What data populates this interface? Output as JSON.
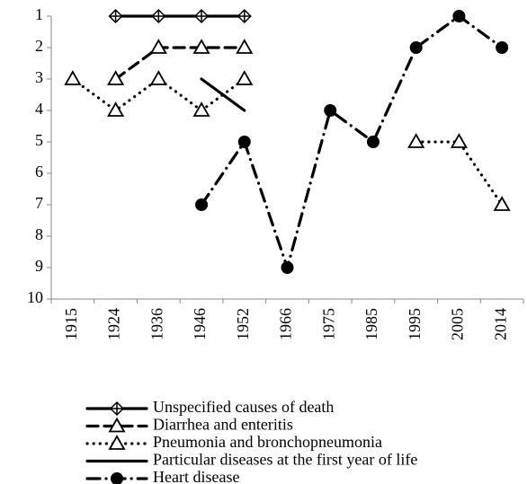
{
  "chart_data": {
    "type": "line",
    "categories": [
      "1915",
      "1924",
      "1936",
      "1946",
      "1952",
      "1966",
      "1975",
      "1985",
      "1995",
      "2005",
      "2014"
    ],
    "ylim": [
      1,
      10
    ],
    "y_inverted": true,
    "yticks": [
      1,
      2,
      3,
      4,
      5,
      6,
      7,
      8,
      9,
      10
    ],
    "grid": false,
    "legend": "bottom",
    "series": [
      {
        "name": "Unspecified causes of death",
        "color": "#000000",
        "marker": "diamond",
        "dash": "solid",
        "values": [
          null,
          1,
          1,
          1,
          1,
          null,
          null,
          null,
          null,
          null,
          null
        ]
      },
      {
        "name": "Diarrhea and enteritis",
        "color": "#000000",
        "marker": "triangle",
        "dash": "dash",
        "values": [
          null,
          3,
          2,
          2,
          2,
          null,
          null,
          null,
          null,
          null,
          null
        ]
      },
      {
        "name": "Pneumonia and bronchopneumonia",
        "color": "#000000",
        "marker": "triangle",
        "dash": "dot",
        "values": [
          3,
          4,
          3,
          4,
          3,
          null,
          null,
          null,
          5,
          5,
          7
        ]
      },
      {
        "name": "Particular diseases at the first year of life",
        "color": "#000000",
        "marker": "none",
        "dash": "solid",
        "values": [
          null,
          null,
          null,
          3,
          4,
          null,
          null,
          null,
          null,
          null,
          null
        ]
      },
      {
        "name": "Heart disease",
        "color": "#000000",
        "marker": "circle",
        "dash": "dashdot",
        "values": [
          null,
          null,
          null,
          7,
          5,
          9,
          4,
          5,
          2,
          1,
          2
        ]
      }
    ]
  }
}
